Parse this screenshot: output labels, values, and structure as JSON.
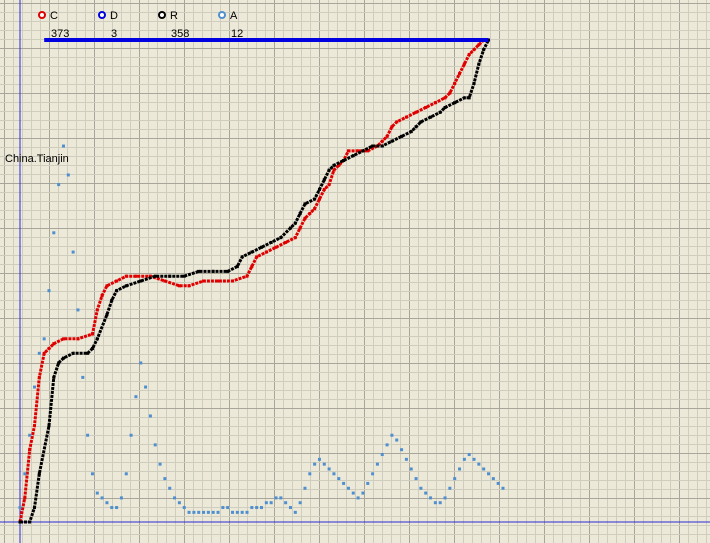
{
  "chart_data": {
    "type": "scatter",
    "title": "",
    "xlabel": "",
    "ylabel": "",
    "grid": true,
    "legend_position": "top-left",
    "annotation": "China.Tianjin",
    "colors": {
      "background": "#ece9d8",
      "grid_minor": "#cfcdbd",
      "grid_major": "#a8a69a",
      "axis": "#2b2bd6"
    },
    "legend": [
      {
        "key": "C",
        "count": "373",
        "color": "#e00000"
      },
      {
        "key": "D",
        "count": "3",
        "color": "#0000e0"
      },
      {
        "key": "R",
        "count": "358",
        "color": "#000000"
      },
      {
        "key": "A",
        "count": "12",
        "color": "#4f8fcf"
      }
    ],
    "xlim": [
      0,
      100
    ],
    "ylim": [
      0,
      100
    ],
    "series": [
      {
        "name": "C",
        "color": "#e00000",
        "style": "line",
        "points": [
          [
            0,
            0
          ],
          [
            1,
            5
          ],
          [
            2,
            15
          ],
          [
            3,
            20
          ],
          [
            4,
            30
          ],
          [
            5,
            35
          ],
          [
            6,
            36
          ],
          [
            7,
            37
          ],
          [
            9,
            38
          ],
          [
            12,
            38
          ],
          [
            15,
            39
          ],
          [
            16,
            44
          ],
          [
            17,
            47
          ],
          [
            18,
            49
          ],
          [
            20,
            50
          ],
          [
            22,
            51
          ],
          [
            24,
            51
          ],
          [
            27,
            51
          ],
          [
            30,
            50
          ],
          [
            33,
            49
          ],
          [
            35,
            49
          ],
          [
            38,
            50
          ],
          [
            41,
            50
          ],
          [
            44,
            50
          ],
          [
            47,
            51
          ],
          [
            48,
            53
          ],
          [
            49,
            55
          ],
          [
            51,
            56
          ],
          [
            53,
            57
          ],
          [
            55,
            58
          ],
          [
            57,
            59
          ],
          [
            58,
            61
          ],
          [
            59,
            63
          ],
          [
            60,
            64
          ],
          [
            61,
            65
          ],
          [
            62,
            67
          ],
          [
            63,
            69
          ],
          [
            64,
            70
          ],
          [
            65,
            73
          ],
          [
            66,
            74
          ],
          [
            67,
            75
          ],
          [
            68,
            77
          ],
          [
            70,
            77
          ],
          [
            72,
            77
          ],
          [
            74,
            78
          ],
          [
            75,
            79
          ],
          [
            76,
            80
          ],
          [
            77,
            82
          ],
          [
            78,
            83
          ],
          [
            80,
            84
          ],
          [
            82,
            85
          ],
          [
            84,
            86
          ],
          [
            86,
            87
          ],
          [
            88,
            88
          ],
          [
            89,
            89
          ],
          [
            90,
            91
          ],
          [
            91,
            93
          ],
          [
            92,
            95
          ],
          [
            93,
            97
          ],
          [
            94,
            98
          ],
          [
            95,
            99
          ],
          [
            96,
            100
          ]
        ]
      },
      {
        "name": "R",
        "color": "#000000",
        "style": "line",
        "points": [
          [
            0,
            0
          ],
          [
            2,
            0
          ],
          [
            3,
            3
          ],
          [
            4,
            10
          ],
          [
            6,
            20
          ],
          [
            7,
            30
          ],
          [
            8,
            33
          ],
          [
            9,
            34
          ],
          [
            11,
            35
          ],
          [
            14,
            35
          ],
          [
            15,
            36
          ],
          [
            16,
            38
          ],
          [
            18,
            43
          ],
          [
            19,
            46
          ],
          [
            20,
            48
          ],
          [
            22,
            49
          ],
          [
            25,
            50
          ],
          [
            28,
            51
          ],
          [
            31,
            51
          ],
          [
            34,
            51
          ],
          [
            37,
            52
          ],
          [
            40,
            52
          ],
          [
            43,
            52
          ],
          [
            45,
            53
          ],
          [
            46,
            55
          ],
          [
            48,
            56
          ],
          [
            50,
            57
          ],
          [
            52,
            58
          ],
          [
            54,
            59
          ],
          [
            56,
            61
          ],
          [
            57,
            62
          ],
          [
            58,
            64
          ],
          [
            59,
            66
          ],
          [
            61,
            67
          ],
          [
            62,
            69
          ],
          [
            63,
            71
          ],
          [
            64,
            73
          ],
          [
            65,
            74
          ],
          [
            67,
            75
          ],
          [
            69,
            76
          ],
          [
            71,
            77
          ],
          [
            73,
            78
          ],
          [
            75,
            78
          ],
          [
            77,
            79
          ],
          [
            79,
            80
          ],
          [
            81,
            81
          ],
          [
            82,
            82
          ],
          [
            83,
            83
          ],
          [
            85,
            84
          ],
          [
            87,
            85
          ],
          [
            88,
            86
          ],
          [
            90,
            87
          ],
          [
            92,
            88
          ],
          [
            93,
            88
          ],
          [
            94,
            91
          ],
          [
            95,
            95
          ],
          [
            96,
            98
          ],
          [
            97,
            100
          ]
        ]
      },
      {
        "name": "D",
        "color": "#0000e0",
        "style": "line",
        "points": [
          [
            5,
            100
          ],
          [
            97,
            100
          ]
        ]
      },
      {
        "name": "A",
        "color": "#4f8fcf",
        "style": "markers",
        "points": [
          [
            0,
            3
          ],
          [
            1,
            10
          ],
          [
            2,
            18
          ],
          [
            3,
            28
          ],
          [
            4,
            35
          ],
          [
            5,
            38
          ],
          [
            6,
            48
          ],
          [
            7,
            60
          ],
          [
            8,
            70
          ],
          [
            9,
            78
          ],
          [
            10,
            72
          ],
          [
            11,
            56
          ],
          [
            12,
            44
          ],
          [
            13,
            30
          ],
          [
            14,
            18
          ],
          [
            15,
            10
          ],
          [
            16,
            6
          ],
          [
            17,
            5
          ],
          [
            18,
            4
          ],
          [
            19,
            3
          ],
          [
            20,
            3
          ],
          [
            21,
            5
          ],
          [
            22,
            10
          ],
          [
            23,
            18
          ],
          [
            24,
            26
          ],
          [
            25,
            33
          ],
          [
            26,
            28
          ],
          [
            27,
            22
          ],
          [
            28,
            16
          ],
          [
            29,
            12
          ],
          [
            30,
            9
          ],
          [
            31,
            7
          ],
          [
            32,
            5
          ],
          [
            33,
            4
          ],
          [
            34,
            3
          ],
          [
            35,
            2
          ],
          [
            36,
            2
          ],
          [
            37,
            2
          ],
          [
            38,
            2
          ],
          [
            39,
            2
          ],
          [
            40,
            2
          ],
          [
            41,
            2
          ],
          [
            42,
            3
          ],
          [
            43,
            3
          ],
          [
            44,
            2
          ],
          [
            45,
            2
          ],
          [
            46,
            2
          ],
          [
            47,
            2
          ],
          [
            48,
            3
          ],
          [
            49,
            3
          ],
          [
            50,
            3
          ],
          [
            51,
            4
          ],
          [
            52,
            4
          ],
          [
            53,
            5
          ],
          [
            54,
            5
          ],
          [
            55,
            4
          ],
          [
            56,
            3
          ],
          [
            57,
            2
          ],
          [
            58,
            4
          ],
          [
            59,
            7
          ],
          [
            60,
            10
          ],
          [
            61,
            12
          ],
          [
            62,
            13
          ],
          [
            63,
            12
          ],
          [
            64,
            11
          ],
          [
            65,
            10
          ],
          [
            66,
            9
          ],
          [
            67,
            8
          ],
          [
            68,
            7
          ],
          [
            69,
            6
          ],
          [
            70,
            5
          ],
          [
            71,
            6
          ],
          [
            72,
            8
          ],
          [
            73,
            10
          ],
          [
            74,
            12
          ],
          [
            75,
            14
          ],
          [
            76,
            16
          ],
          [
            77,
            18
          ],
          [
            78,
            17
          ],
          [
            79,
            15
          ],
          [
            80,
            13
          ],
          [
            81,
            11
          ],
          [
            82,
            9
          ],
          [
            83,
            7
          ],
          [
            84,
            6
          ],
          [
            85,
            5
          ],
          [
            86,
            4
          ],
          [
            87,
            4
          ],
          [
            88,
            5
          ],
          [
            89,
            7
          ],
          [
            90,
            9
          ],
          [
            91,
            11
          ],
          [
            92,
            13
          ],
          [
            93,
            14
          ],
          [
            94,
            13
          ],
          [
            95,
            12
          ],
          [
            96,
            11
          ],
          [
            97,
            10
          ],
          [
            98,
            9
          ],
          [
            99,
            8
          ],
          [
            100,
            7
          ]
        ]
      }
    ]
  }
}
